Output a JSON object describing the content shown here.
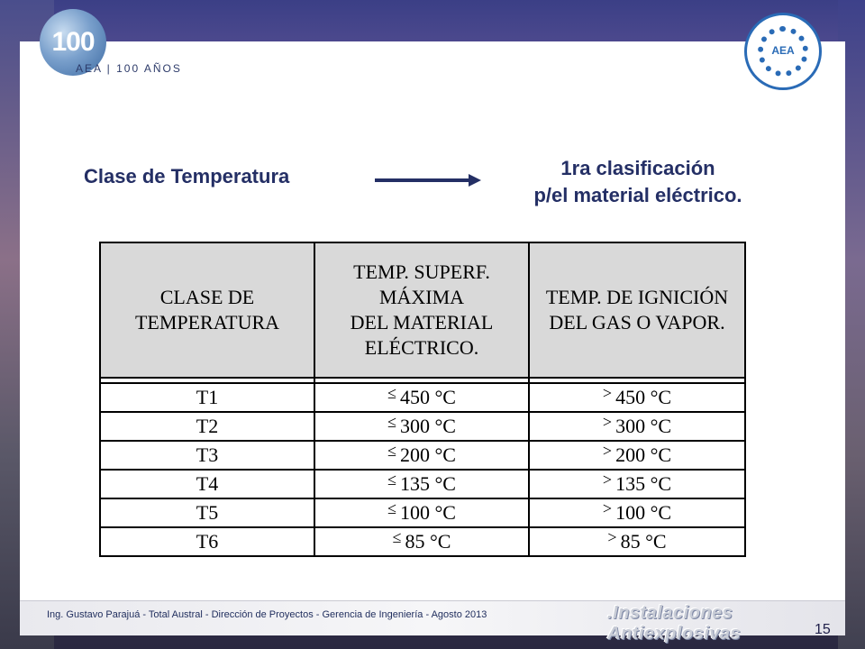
{
  "logo": {
    "number": "100",
    "caption": "AEA | 100 AÑOS",
    "seal_text": "AEA"
  },
  "header": {
    "left_title": "Clase de Temperatura",
    "right_line1": "1ra clasificación",
    "right_line2": "p/el material eléctrico."
  },
  "table": {
    "headers": [
      [
        "CLASE DE",
        "TEMPERATURA"
      ],
      [
        "TEMP. SUPERF.",
        "MÁXIMA",
        "DEL MATERIAL",
        "ELÉCTRICO."
      ],
      [
        "TEMP. DE IGNICIÓN",
        "DEL GAS O VAPOR."
      ]
    ],
    "op_max": "≤",
    "op_ign": ">",
    "rows": [
      {
        "cls": "T1",
        "max": "450 °C",
        "ign": "450 °C"
      },
      {
        "cls": "T2",
        "max": "300 °C",
        "ign": "300 °C"
      },
      {
        "cls": "T3",
        "max": "200 °C",
        "ign": "200 °C"
      },
      {
        "cls": "T4",
        "max": "135 °C",
        "ign": "135 °C"
      },
      {
        "cls": "T5",
        "max": "100 °C",
        "ign": "100 °C"
      },
      {
        "cls": "T6",
        "max": "85 °C",
        "ign": "85 °C"
      }
    ]
  },
  "footer": {
    "credit": "Ing. Gustavo Parajuá - Total Austral - Dirección de Proyectos - Gerencia de Ingeniería - Agosto 2013",
    "brand": ".Instalaciones Antiexplosivas",
    "page": "15"
  }
}
